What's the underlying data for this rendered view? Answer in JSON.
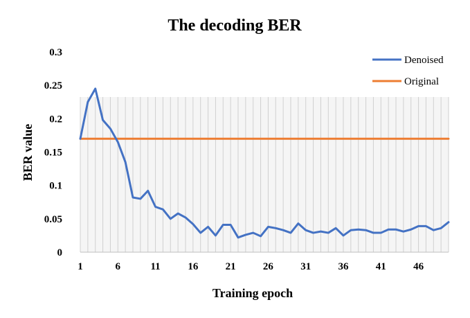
{
  "chart_data": {
    "type": "line",
    "title": "The decoding BER",
    "xlabel": "Training epoch",
    "ylabel": "BER value",
    "x": [
      1,
      2,
      3,
      4,
      5,
      6,
      7,
      8,
      9,
      10,
      11,
      12,
      13,
      14,
      15,
      16,
      17,
      18,
      19,
      20,
      21,
      22,
      23,
      24,
      25,
      26,
      27,
      28,
      29,
      30,
      31,
      32,
      33,
      34,
      35,
      36,
      37,
      38,
      39,
      40,
      41,
      42,
      43,
      44,
      45,
      46,
      47,
      48,
      49,
      50
    ],
    "x_ticks": [
      1,
      6,
      11,
      16,
      21,
      26,
      31,
      36,
      41,
      46
    ],
    "y_ticks": [
      "0",
      "0.05",
      "0.1",
      "0.15",
      "0.2",
      "0.25",
      "0.3"
    ],
    "ylim": [
      0,
      0.3
    ],
    "grid": "vertical",
    "legend_position": "top-right",
    "series": [
      {
        "name": "Denoised",
        "color": "#4472C4",
        "values": [
          0.17,
          0.225,
          0.245,
          0.198,
          0.185,
          0.165,
          0.135,
          0.082,
          0.08,
          0.092,
          0.068,
          0.064,
          0.05,
          0.058,
          0.052,
          0.042,
          0.029,
          0.038,
          0.025,
          0.041,
          0.041,
          0.022,
          0.026,
          0.029,
          0.024,
          0.038,
          0.036,
          0.033,
          0.029,
          0.043,
          0.033,
          0.029,
          0.031,
          0.029,
          0.036,
          0.025,
          0.033,
          0.034,
          0.033,
          0.029,
          0.029,
          0.034,
          0.034,
          0.031,
          0.034,
          0.039,
          0.039,
          0.033,
          0.036,
          0.045
        ]
      },
      {
        "name": "Original",
        "color": "#ED7D31",
        "values": [
          0.17,
          0.17,
          0.17,
          0.17,
          0.17,
          0.17,
          0.17,
          0.17,
          0.17,
          0.17,
          0.17,
          0.17,
          0.17,
          0.17,
          0.17,
          0.17,
          0.17,
          0.17,
          0.17,
          0.17,
          0.17,
          0.17,
          0.17,
          0.17,
          0.17,
          0.17,
          0.17,
          0.17,
          0.17,
          0.17,
          0.17,
          0.17,
          0.17,
          0.17,
          0.17,
          0.17,
          0.17,
          0.17,
          0.17,
          0.17,
          0.17,
          0.17,
          0.17,
          0.17,
          0.17,
          0.17,
          0.17,
          0.17,
          0.17,
          0.17
        ]
      }
    ]
  }
}
